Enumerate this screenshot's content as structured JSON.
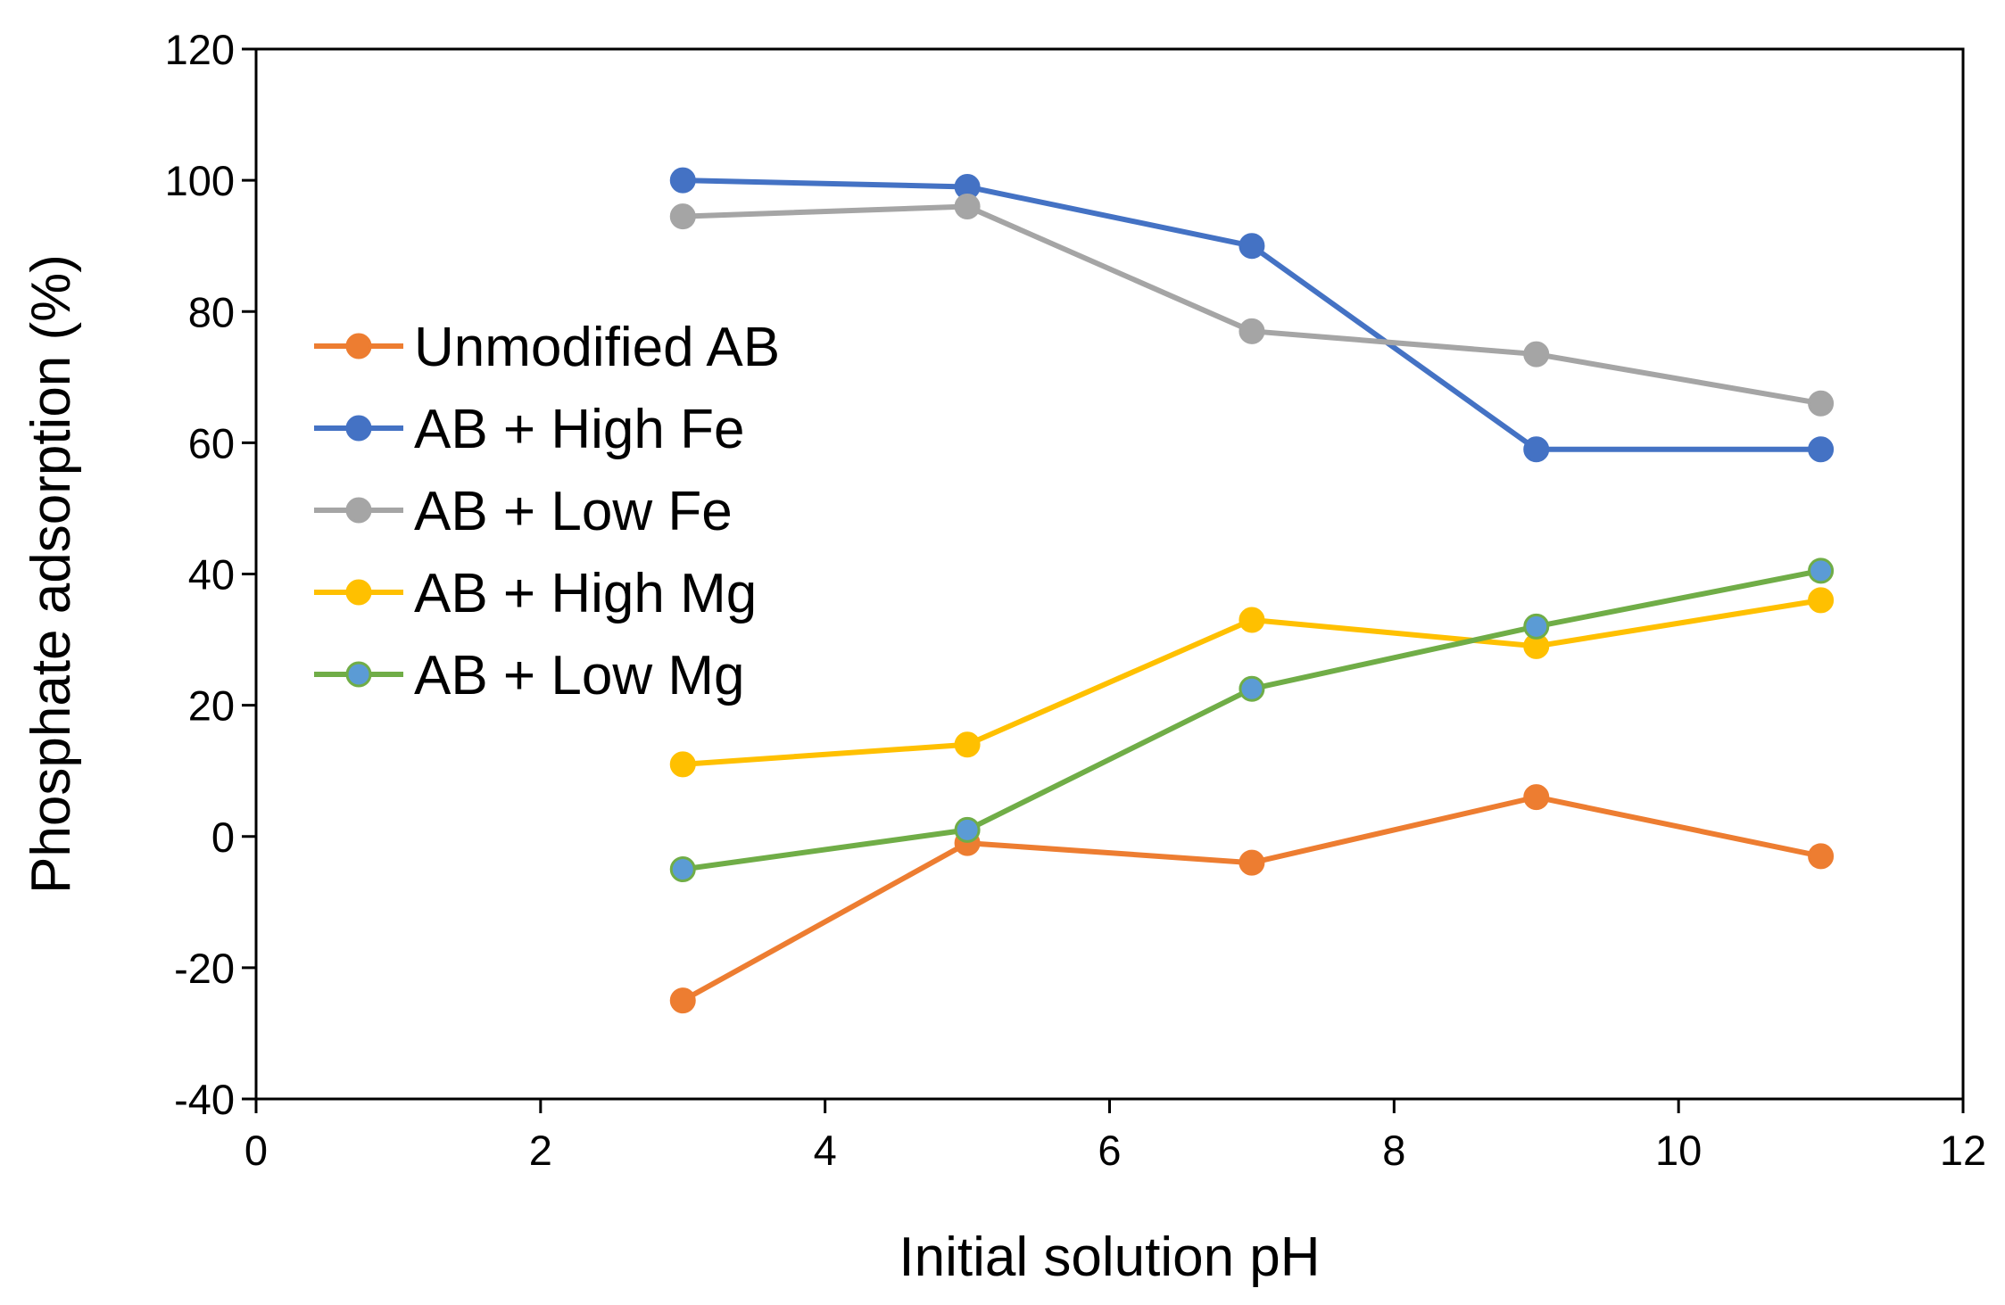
{
  "chart_data": {
    "type": "line",
    "title": "",
    "xlabel": "Initial solution pH",
    "ylabel": "Phosphate adsorption (%)",
    "xlim": [
      0,
      12
    ],
    "ylim": [
      -40,
      120
    ],
    "xticks": [
      0,
      2,
      4,
      6,
      8,
      10,
      12
    ],
    "yticks": [
      -40,
      -20,
      0,
      20,
      40,
      60,
      80,
      100,
      120
    ],
    "xtick_labels": [
      "0",
      "2",
      "4",
      "6",
      "8",
      "10",
      "12"
    ],
    "ytick_labels": [
      "-40",
      "-20",
      "0",
      "20",
      "40",
      "60",
      "80",
      "100",
      "120"
    ],
    "grid": false,
    "legend_position": "left-middle",
    "x": [
      3,
      5,
      7,
      9,
      11
    ],
    "series": [
      {
        "name": "Unmodified AB",
        "color": "#ED7D31",
        "marker_fill": "#ED7D31",
        "values": [
          -25,
          -1,
          -4,
          6,
          -3
        ]
      },
      {
        "name": "AB + High Fe",
        "color": "#4472C4",
        "marker_fill": "#4472C4",
        "values": [
          100,
          99,
          90,
          59,
          59
        ]
      },
      {
        "name": "AB + Low Fe",
        "color": "#A5A5A5",
        "marker_fill": "#A5A5A5",
        "values": [
          94.5,
          96,
          77,
          73.5,
          66
        ]
      },
      {
        "name": "AB + High Mg",
        "color": "#FFC000",
        "marker_fill": "#FFC000",
        "values": [
          11,
          14,
          33,
          29,
          36
        ]
      },
      {
        "name": "AB + Low Mg",
        "color": "#70AD47",
        "marker_fill": "#5B9BD5",
        "values": [
          -5,
          1,
          22.5,
          32,
          40.5
        ]
      }
    ]
  }
}
